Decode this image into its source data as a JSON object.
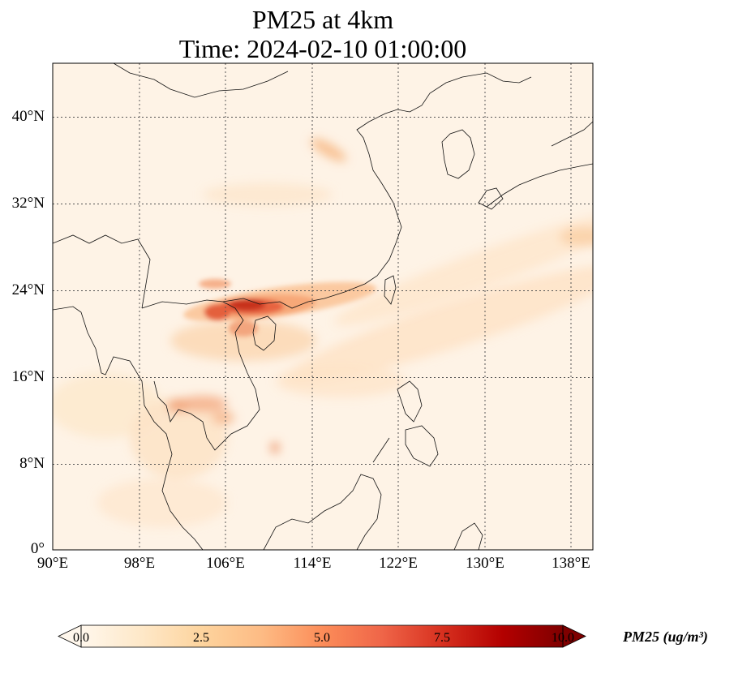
{
  "title": {
    "line1": "PM25 at 4km",
    "line2": "Time: 2024-02-10 01:00:00"
  },
  "map": {
    "projection": "PlateCarree",
    "lon_range": [
      90,
      139.5
    ],
    "lat_range": [
      0,
      44
    ],
    "gridlines": "dotted",
    "colormap": "OrRd",
    "lat_ticks": [
      "0°",
      "8°N",
      "16°N",
      "24°N",
      "32°N",
      "40°N"
    ],
    "lon_ticks": [
      "90°E",
      "98°E",
      "106°E",
      "114°E",
      "122°E",
      "130°E",
      "138°E"
    ]
  },
  "colorbar": {
    "label": "PM25 (ug/m³)",
    "ticks": [
      "0.0",
      "2.5",
      "5.0",
      "7.5",
      "10.0"
    ],
    "min": 0,
    "max": 10,
    "extend": "both",
    "colors": [
      "#fff7ec",
      "#fee8c8",
      "#fdd49e",
      "#fdbb84",
      "#fc8d59",
      "#ef6548",
      "#d7301f",
      "#b30000",
      "#7f0000"
    ]
  }
}
